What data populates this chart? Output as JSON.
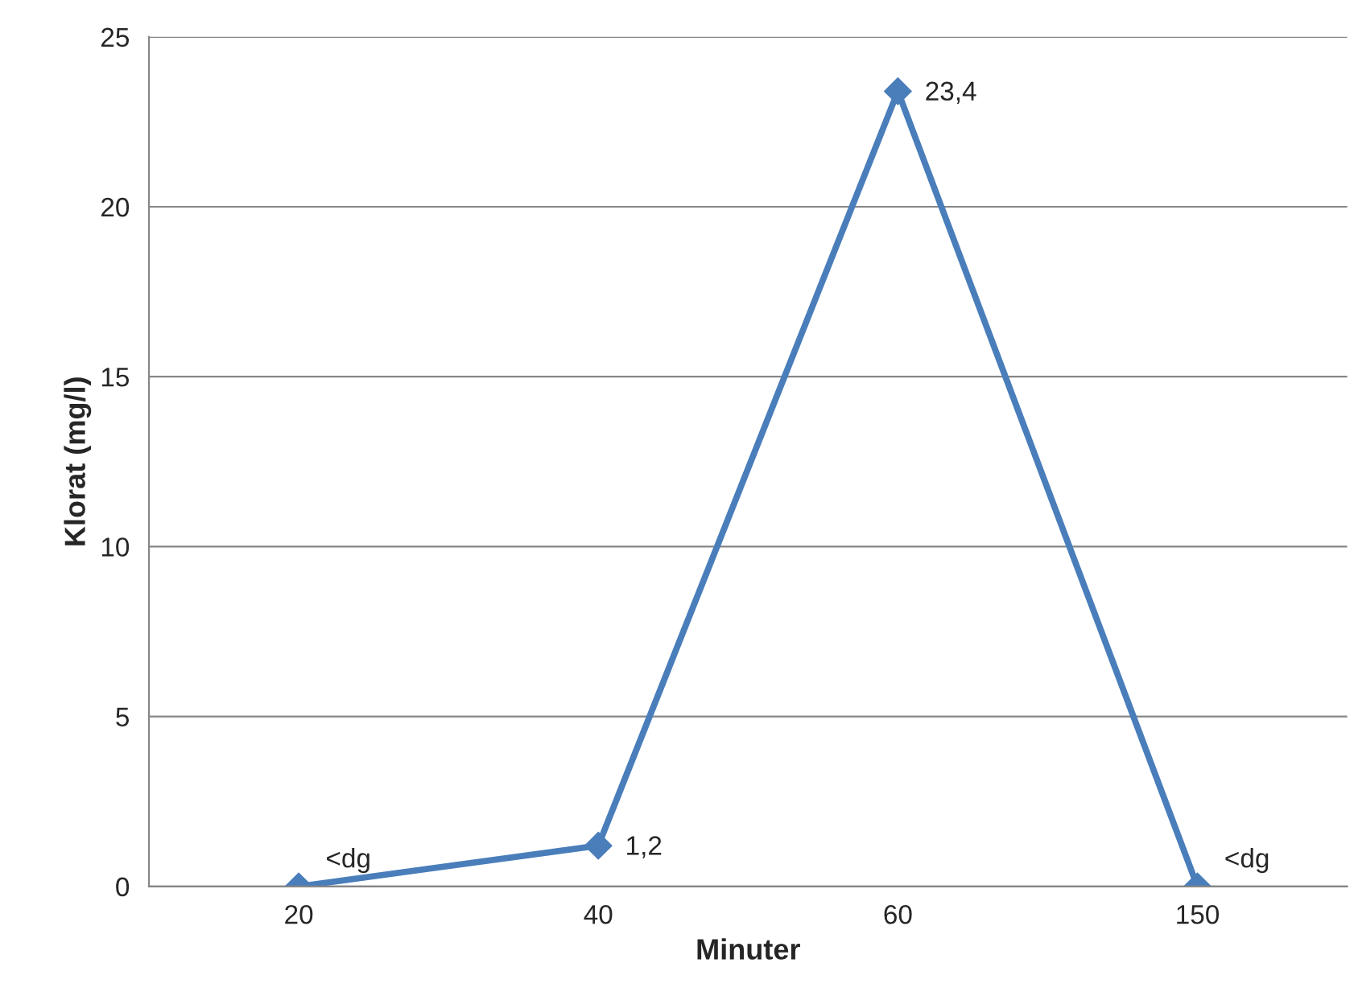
{
  "chart_data": {
    "type": "line",
    "xlabel": "Minuter",
    "ylabel": "Klorat (mg/l)",
    "categories": [
      "20",
      "40",
      "60",
      "150"
    ],
    "series": [
      {
        "color": "#4a7ebb",
        "values": [
          0,
          1.2,
          23.4,
          0
        ],
        "value_labels": [
          "<dg",
          "1,2",
          "23,4",
          "<dg"
        ]
      }
    ],
    "ylim": [
      0,
      25
    ],
    "yticks": [
      0,
      5,
      10,
      15,
      20,
      25
    ],
    "grid": "y",
    "marker": "diamond",
    "line_style": "solid"
  }
}
